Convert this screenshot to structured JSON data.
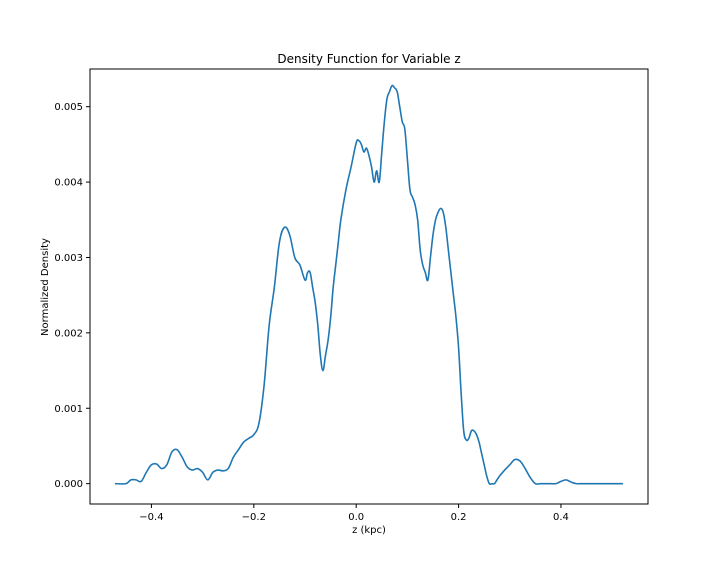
{
  "chart_data": {
    "type": "line",
    "title": "Density Function for Variable z",
    "xlabel": "z (kpc)",
    "ylabel": "Normalized Density",
    "xlim": [
      -0.52,
      0.57
    ],
    "ylim": [
      -0.00027,
      0.0055
    ],
    "xticks": [
      -0.4,
      -0.2,
      0.0,
      0.2,
      0.4
    ],
    "xtick_labels": [
      "−0.4",
      "−0.2",
      "0.0",
      "0.2",
      "0.4"
    ],
    "yticks": [
      0.0,
      0.001,
      0.002,
      0.003,
      0.004,
      0.005
    ],
    "ytick_labels": [
      "0.000",
      "0.001",
      "0.002",
      "0.003",
      "0.004",
      "0.005"
    ],
    "grid": false,
    "series": [
      {
        "color": "#1f77b4",
        "x": [
          -0.47,
          -0.45,
          -0.44,
          -0.43,
          -0.42,
          -0.41,
          -0.4,
          -0.39,
          -0.38,
          -0.37,
          -0.36,
          -0.35,
          -0.34,
          -0.33,
          -0.32,
          -0.31,
          -0.3,
          -0.29,
          -0.28,
          -0.27,
          -0.26,
          -0.25,
          -0.24,
          -0.23,
          -0.22,
          -0.21,
          -0.2,
          -0.19,
          -0.18,
          -0.17,
          -0.16,
          -0.15,
          -0.14,
          -0.13,
          -0.12,
          -0.11,
          -0.1,
          -0.095,
          -0.09,
          -0.085,
          -0.08,
          -0.075,
          -0.07,
          -0.065,
          -0.06,
          -0.055,
          -0.05,
          -0.045,
          -0.04,
          -0.035,
          -0.03,
          -0.02,
          -0.01,
          0.0,
          0.005,
          0.01,
          0.015,
          0.02,
          0.025,
          0.03,
          0.035,
          0.04,
          0.045,
          0.05,
          0.055,
          0.06,
          0.065,
          0.07,
          0.075,
          0.08,
          0.085,
          0.09,
          0.095,
          0.1,
          0.105,
          0.11,
          0.115,
          0.12,
          0.125,
          0.13,
          0.135,
          0.14,
          0.145,
          0.15,
          0.155,
          0.16,
          0.165,
          0.17,
          0.175,
          0.18,
          0.185,
          0.19,
          0.195,
          0.2,
          0.205,
          0.21,
          0.215,
          0.22,
          0.225,
          0.23,
          0.235,
          0.24,
          0.245,
          0.25,
          0.255,
          0.26,
          0.265,
          0.27,
          0.275,
          0.28,
          0.29,
          0.3,
          0.31,
          0.32,
          0.33,
          0.34,
          0.35,
          0.36,
          0.365,
          0.37,
          0.38,
          0.39,
          0.4,
          0.41,
          0.42,
          0.43,
          0.44,
          0.45,
          0.46,
          0.47,
          0.48,
          0.49,
          0.5,
          0.52
        ],
        "y": [
          0.0,
          0.0,
          5e-05,
          5e-05,
          3e-05,
          0.00015,
          0.00025,
          0.00026,
          0.0002,
          0.00025,
          0.00042,
          0.00045,
          0.00035,
          0.00022,
          0.00018,
          0.0002,
          0.00015,
          5e-05,
          0.00015,
          0.00018,
          0.00017,
          0.0002,
          0.00035,
          0.00045,
          0.00055,
          0.0006,
          0.00065,
          0.0008,
          0.0013,
          0.0021,
          0.0026,
          0.0032,
          0.0034,
          0.0033,
          0.003,
          0.0029,
          0.0027,
          0.0028,
          0.0028,
          0.0026,
          0.0024,
          0.0021,
          0.0017,
          0.0015,
          0.0017,
          0.0019,
          0.0022,
          0.0026,
          0.0029,
          0.0032,
          0.0035,
          0.0039,
          0.0042,
          0.00452,
          0.00455,
          0.0045,
          0.0044,
          0.00445,
          0.00435,
          0.0042,
          0.004,
          0.00415,
          0.004,
          0.0044,
          0.0048,
          0.0051,
          0.0052,
          0.00528,
          0.00525,
          0.0052,
          0.005,
          0.0048,
          0.0047,
          0.0043,
          0.0039,
          0.0038,
          0.0037,
          0.0035,
          0.0031,
          0.0029,
          0.0028,
          0.0027,
          0.003,
          0.0033,
          0.0035,
          0.0036,
          0.00365,
          0.0036,
          0.0034,
          0.0031,
          0.0028,
          0.0025,
          0.0022,
          0.0018,
          0.0012,
          0.0007,
          0.00058,
          0.0006,
          0.0007,
          0.0007,
          0.00065,
          0.00055,
          0.0004,
          0.00025,
          0.0001,
          0.0,
          0.0,
          0.0,
          5e-05,
          0.0001,
          0.00018,
          0.00025,
          0.00032,
          0.0003,
          0.0002,
          8e-05,
          0.0,
          0.0,
          0.0,
          0.0,
          0.0,
          0.0,
          3e-05,
          5e-05,
          2e-05,
          0.0,
          0.0,
          0.0,
          0.0,
          0.0,
          0.0,
          0.0,
          0.0,
          0.0
        ]
      }
    ]
  }
}
